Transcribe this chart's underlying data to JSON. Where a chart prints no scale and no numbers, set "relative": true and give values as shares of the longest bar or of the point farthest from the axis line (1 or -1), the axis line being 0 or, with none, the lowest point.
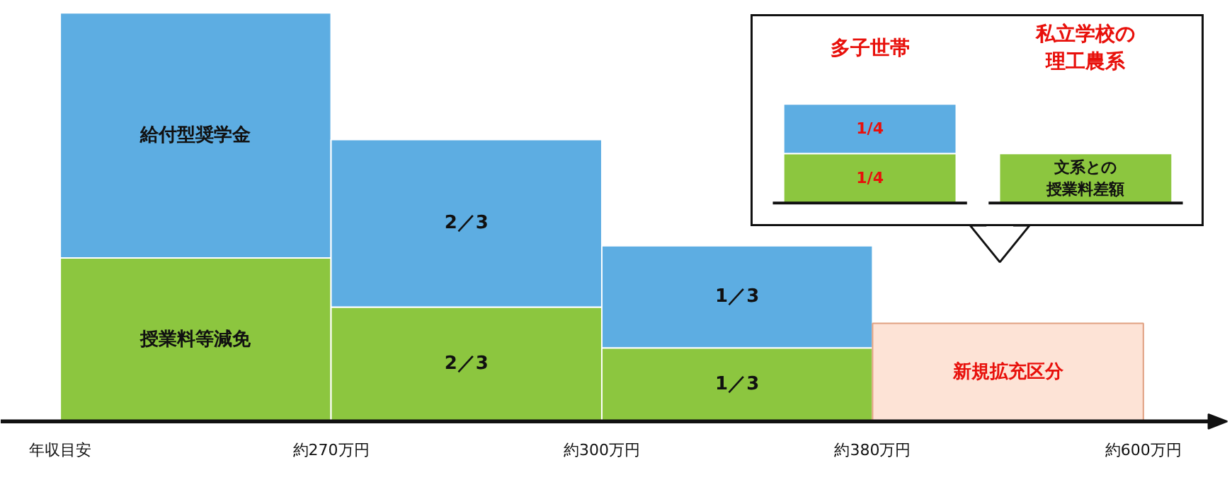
{
  "chart_data": [
    {
      "type": "bar",
      "stacked": true,
      "relative": true,
      "categories": [
        null,
        null,
        null,
        null
      ],
      "series": [
        {
          "color": "#8cc63f",
          "values": [
            0.4,
            0.28,
            0.18,
            null
          ]
        },
        {
          "color": "#5dade2",
          "values": [
            0.6,
            0.41,
            0.25,
            null
          ]
        },
        {
          "color": "#fde3d6",
          "values": [
            null,
            null,
            null,
            0.24
          ]
        }
      ],
      "annotations": [
        "年収目安",
        "約270万円",
        "約300万円",
        "約380万円",
        "約600万円",
        "給付型奨学金",
        "授業料等減免",
        "2／3",
        "2／3",
        "1／3",
        "1／3",
        "新規拡充区分"
      ],
      "grid": false
    },
    {
      "type": "bar",
      "stacked": true,
      "categories": [
        "多子世帯",
        "私立学校の理工農系"
      ],
      "series": [
        {
          "color": "#8cc63f",
          "values": [
            0.25,
            0.25
          ],
          "value_labels": [
            "1/4",
            "文系との授業料差額"
          ]
        },
        {
          "color": "#5dade2",
          "values": [
            0.25,
            null
          ],
          "value_labels": [
            "1/4",
            null
          ]
        }
      ],
      "grid": false
    }
  ]
}
